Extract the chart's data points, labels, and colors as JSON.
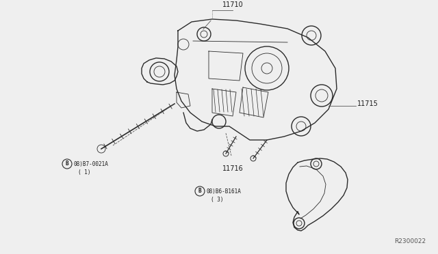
{
  "bg_color": "#efefef",
  "ref_code": "R2300022",
  "line_color": "#2a2a2a",
  "text_color": "#1a1a1a",
  "label_11710": "11710",
  "label_11715": "11715",
  "label_11716": "11716",
  "label_bolt1_code": "08)B7-0021A",
  "label_bolt1_qty": "( 1)",
  "label_bolt2_code": "08)B6-B161A",
  "label_bolt2_qty": "( 3)"
}
